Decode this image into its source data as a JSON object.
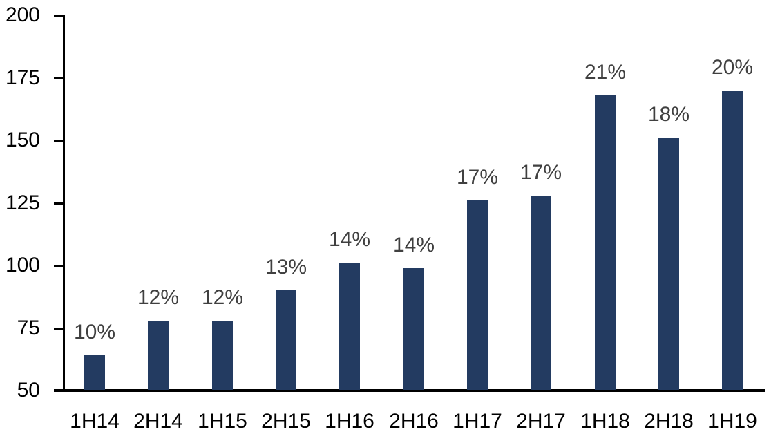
{
  "chart_data": {
    "type": "bar",
    "title": "",
    "xlabel": "",
    "ylabel": "",
    "categories": [
      "1H14",
      "2H14",
      "1H15",
      "2H15",
      "1H16",
      "2H16",
      "1H17",
      "2H17",
      "1H18",
      "2H18",
      "1H19"
    ],
    "values": [
      64,
      78,
      78,
      90,
      101,
      99,
      126,
      128,
      168,
      151,
      170
    ],
    "bar_labels": [
      "10%",
      "12%",
      "12%",
      "13%",
      "14%",
      "14%",
      "17%",
      "17%",
      "21%",
      "18%",
      "20%"
    ],
    "ylim": [
      50,
      200
    ],
    "yticks": [
      50,
      75,
      100,
      125,
      150,
      175,
      200
    ],
    "grid": false,
    "legend": false,
    "colors": {
      "bar": "#233B61",
      "data_label": "#404040",
      "axis_text": "#000000",
      "axis_line": "#000000",
      "background": "#FFFFFF"
    }
  }
}
